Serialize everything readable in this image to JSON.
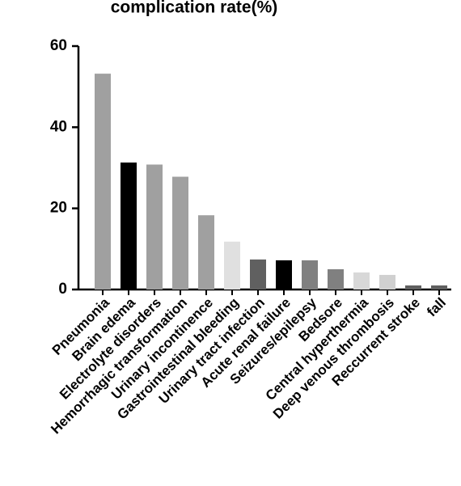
{
  "chart_data": {
    "type": "bar",
    "title": "complication rate(%)",
    "categories": [
      "Pneumonia",
      "Brain edema",
      "Electrolyte disorders",
      "Hemorrhagic transformation",
      "Urinary incontinence",
      "Gastrointestinal bleeding",
      "Urinary tract infection",
      "Acute renal failure",
      "Seizures/epilepsy",
      "Bedsore",
      "Central hyperthermia",
      "Deep venous thrombosis",
      "Reccurrent stroke",
      "fall"
    ],
    "values": [
      53.2,
      31.3,
      30.8,
      27.8,
      18.3,
      11.8,
      7.4,
      7.2,
      7.2,
      5.0,
      4.2,
      3.6,
      1.0,
      1.0
    ],
    "colors": [
      "#a0a0a0",
      "#000000",
      "#a0a0a0",
      "#a0a0a0",
      "#a0a0a0",
      "#e0e0e0",
      "#606060",
      "#000000",
      "#808080",
      "#808080",
      "#d8d8d8",
      "#d0d0d0",
      "#606060",
      "#606060"
    ],
    "ylim": [
      0,
      60
    ],
    "yticks": [
      0,
      20,
      40,
      60
    ]
  }
}
